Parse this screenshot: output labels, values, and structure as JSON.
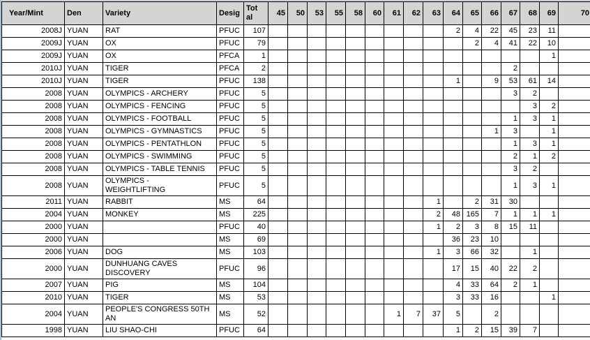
{
  "table": {
    "columns": [
      "Year/Mint",
      "Den",
      "Variety",
      "Desig",
      "Tot al",
      "45",
      "50",
      "53",
      "55",
      "58",
      "60",
      "61",
      "62",
      "63",
      "64",
      "65",
      "66",
      "67",
      "68",
      "69",
      "70"
    ],
    "rows": [
      {
        "cells": [
          "2008J",
          "YUAN",
          "RAT",
          "PFUC",
          "107",
          "",
          "",
          "",
          "",
          "",
          "",
          "",
          "",
          "",
          "2",
          "4",
          "22",
          "45",
          "23",
          "11",
          ""
        ]
      },
      {
        "cells": [
          "2009J",
          "YUAN",
          "OX",
          "PFUC",
          "79",
          "",
          "",
          "",
          "",
          "",
          "",
          "",
          "",
          "",
          "",
          "2",
          "4",
          "41",
          "22",
          "10",
          ""
        ]
      },
      {
        "cells": [
          "2009J",
          "YUAN",
          "OX",
          "PFCA",
          "1",
          "",
          "",
          "",
          "",
          "",
          "",
          "",
          "",
          "",
          "",
          "",
          "",
          "",
          "",
          "1",
          ""
        ]
      },
      {
        "cells": [
          "2010J",
          "YUAN",
          "TIGER",
          "PFCA",
          "2",
          "",
          "",
          "",
          "",
          "",
          "",
          "",
          "",
          "",
          "",
          "",
          "",
          "2",
          "",
          "",
          ""
        ]
      },
      {
        "cells": [
          "2010J",
          "YUAN",
          "TIGER",
          "PFUC",
          "138",
          "",
          "",
          "",
          "",
          "",
          "",
          "",
          "",
          "",
          "1",
          "",
          "9",
          "53",
          "61",
          "14",
          ""
        ]
      },
      {
        "cells": [
          "2008",
          "YUAN",
          "OLYMPICS - ARCHERY",
          "PFUC",
          "5",
          "",
          "",
          "",
          "",
          "",
          "",
          "",
          "",
          "",
          "",
          "",
          "",
          "3",
          "2",
          "",
          ""
        ]
      },
      {
        "cells": [
          "2008",
          "YUAN",
          "OLYMPICS - FENCING",
          "PFUC",
          "5",
          "",
          "",
          "",
          "",
          "",
          "",
          "",
          "",
          "",
          "",
          "",
          "",
          "",
          "3",
          "2",
          ""
        ]
      },
      {
        "cells": [
          "2008",
          "YUAN",
          "OLYMPICS - FOOTBALL",
          "PFUC",
          "5",
          "",
          "",
          "",
          "",
          "",
          "",
          "",
          "",
          "",
          "",
          "",
          "",
          "1",
          "3",
          "1",
          ""
        ]
      },
      {
        "cells": [
          "2008",
          "YUAN",
          "OLYMPICS - GYMNASTICS",
          "PFUC",
          "5",
          "",
          "",
          "",
          "",
          "",
          "",
          "",
          "",
          "",
          "",
          "",
          "1",
          "3",
          "",
          "1",
          ""
        ]
      },
      {
        "cells": [
          "2008",
          "YUAN",
          "OLYMPICS - PENTATHLON",
          "PFUC",
          "5",
          "",
          "",
          "",
          "",
          "",
          "",
          "",
          "",
          "",
          "",
          "",
          "",
          "1",
          "3",
          "1",
          ""
        ]
      },
      {
        "cells": [
          "2008",
          "YUAN",
          "OLYMPICS - SWIMMING",
          "PFUC",
          "5",
          "",
          "",
          "",
          "",
          "",
          "",
          "",
          "",
          "",
          "",
          "",
          "",
          "2",
          "1",
          "2",
          ""
        ]
      },
      {
        "cells": [
          "2008",
          "YUAN",
          "OLYMPICS - TABLE TENNIS",
          "PFUC",
          "5",
          "",
          "",
          "",
          "",
          "",
          "",
          "",
          "",
          "",
          "",
          "",
          "",
          "3",
          "2",
          "",
          ""
        ]
      },
      {
        "cells": [
          "2008",
          "YUAN",
          "OLYMPICS -\nWEIGHTLIFTING",
          "PFUC",
          "5",
          "",
          "",
          "",
          "",
          "",
          "",
          "",
          "",
          "",
          "",
          "",
          "",
          "1",
          "3",
          "1",
          ""
        ]
      },
      {
        "cells": [
          "2011",
          "YUAN",
          "RABBIT",
          "MS",
          "64",
          "",
          "",
          "",
          "",
          "",
          "",
          "",
          "",
          "1",
          "",
          "2",
          "31",
          "30",
          "",
          "",
          ""
        ]
      },
      {
        "cells": [
          "2004",
          "YUAN",
          "MONKEY",
          "MS",
          "225",
          "",
          "",
          "",
          "",
          "",
          "",
          "",
          "",
          "2",
          "48",
          "165",
          "7",
          "1",
          "1",
          "1",
          ""
        ]
      },
      {
        "cells": [
          "2000",
          "YUAN",
          "",
          "PFUC",
          "40",
          "",
          "",
          "",
          "",
          "",
          "",
          "",
          "",
          "1",
          "2",
          "3",
          "8",
          "15",
          "11",
          "",
          ""
        ]
      },
      {
        "cells": [
          "2000",
          "YUAN",
          "",
          "MS",
          "69",
          "",
          "",
          "",
          "",
          "",
          "",
          "",
          "",
          "",
          "36",
          "23",
          "10",
          "",
          "",
          "",
          ""
        ]
      },
      {
        "cells": [
          "2006",
          "YUAN",
          "DOG",
          "MS",
          "103",
          "",
          "",
          "",
          "",
          "",
          "",
          "",
          "",
          "1",
          "3",
          "66",
          "32",
          "",
          "1",
          "",
          ""
        ]
      },
      {
        "cells": [
          "2000",
          "YUAN",
          "DUNHUANG CAVES\nDISCOVERY",
          "PFUC",
          "96",
          "",
          "",
          "",
          "",
          "",
          "",
          "",
          "",
          "",
          "17",
          "15",
          "40",
          "22",
          "2",
          "",
          ""
        ]
      },
      {
        "cells": [
          "2007",
          "YUAN",
          "PIG",
          "MS",
          "104",
          "",
          "",
          "",
          "",
          "",
          "",
          "",
          "",
          "",
          "4",
          "33",
          "64",
          "2",
          "1",
          "",
          ""
        ]
      },
      {
        "cells": [
          "2010",
          "YUAN",
          "TIGER",
          "MS",
          "53",
          "",
          "",
          "",
          "",
          "",
          "",
          "",
          "",
          "",
          "3",
          "33",
          "16",
          "",
          "",
          "1",
          ""
        ]
      },
      {
        "cells": [
          "2004",
          "YUAN",
          "PEOPLE'S CONGRESS 50TH\nAN",
          "MS",
          "52",
          "",
          "",
          "",
          "",
          "",
          "",
          "1",
          "7",
          "37",
          "5",
          "",
          "2",
          "",
          "",
          "",
          ""
        ]
      },
      {
        "cells": [
          "1998",
          "YUAN",
          "LIU SHAO-CHI",
          "PFUC",
          "64",
          "",
          "",
          "",
          "",
          "",
          "",
          "",
          "",
          "",
          "1",
          "2",
          "15",
          "39",
          "7",
          "",
          ""
        ]
      }
    ]
  },
  "colors": {
    "header_bg": "#d4d4d4",
    "grid": "#000000",
    "text": "#000000",
    "edge_left": "#a9bccb",
    "edge_top": "#c6d1e0",
    "row_bg": "#ffffff"
  }
}
